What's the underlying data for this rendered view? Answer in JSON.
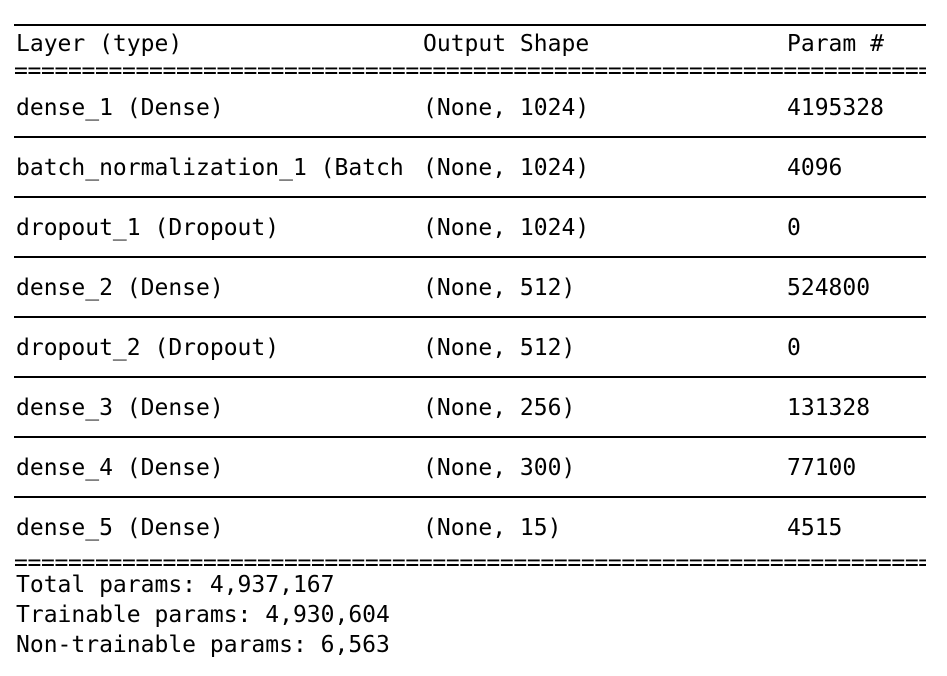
{
  "header": {
    "layer": "Layer (type)",
    "output_shape": "Output Shape",
    "params": "Param #"
  },
  "separator_double": "===================================================================================",
  "rows": [
    {
      "layer": "dense_1 (Dense)",
      "output_shape": "(None, 1024)",
      "params": "4195328"
    },
    {
      "layer": "batch_normalization_1 (Batch",
      "output_shape": "(None, 1024)",
      "params": "4096"
    },
    {
      "layer": "dropout_1 (Dropout)",
      "output_shape": "(None, 1024)",
      "params": "0"
    },
    {
      "layer": "dense_2 (Dense)",
      "output_shape": "(None, 512)",
      "params": "524800"
    },
    {
      "layer": "dropout_2 (Dropout)",
      "output_shape": "(None, 512)",
      "params": "0"
    },
    {
      "layer": "dense_3 (Dense)",
      "output_shape": "(None, 256)",
      "params": "131328"
    },
    {
      "layer": "dense_4 (Dense)",
      "output_shape": "(None, 300)",
      "params": "77100"
    },
    {
      "layer": "dense_5 (Dense)",
      "output_shape": "(None, 15)",
      "params": "4515"
    }
  ],
  "totals": {
    "total": "Total params: 4,937,167",
    "trainable": "Trainable params: 4,930,604",
    "non_trainable": "Non-trainable params: 6,563"
  }
}
